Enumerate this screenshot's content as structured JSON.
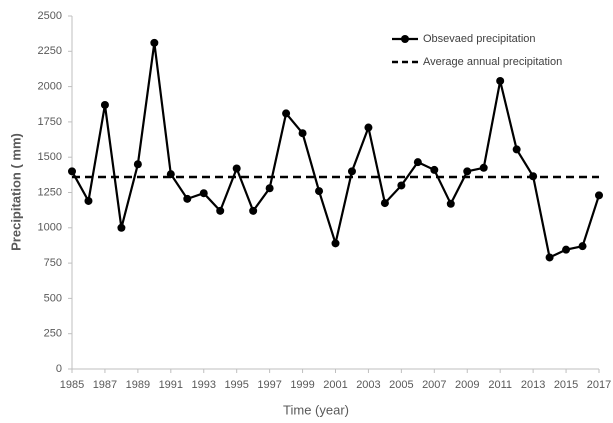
{
  "chart_data": {
    "type": "line",
    "x_label": "Time (year)",
    "y_label": "Precipitation ( mm)",
    "x": [
      1985,
      1986,
      1987,
      1988,
      1989,
      1990,
      1991,
      1992,
      1993,
      1994,
      1995,
      1996,
      1997,
      1998,
      1999,
      2000,
      2001,
      2002,
      2003,
      2004,
      2005,
      2006,
      2007,
      2008,
      2009,
      2010,
      2011,
      2012,
      2013,
      2014,
      2015,
      2016,
      2017
    ],
    "series": [
      {
        "name": "Obsevaed precipitation",
        "color": "#000000",
        "values": [
          1400,
          1190,
          1870,
          1000,
          1450,
          2310,
          1380,
          1205,
          1245,
          1120,
          1420,
          1120,
          1280,
          1810,
          1670,
          1260,
          890,
          1400,
          1710,
          1175,
          1300,
          1465,
          1410,
          1170,
          1400,
          1425,
          2040,
          1555,
          1365,
          790,
          845,
          870,
          1230
        ]
      }
    ],
    "reference_line": {
      "name": "Average annual precipitation",
      "value": 1360,
      "color": "#000000"
    },
    "xlim": [
      1985,
      2017
    ],
    "xticks": [
      1985,
      1987,
      1989,
      1991,
      1993,
      1995,
      1997,
      1999,
      2001,
      2003,
      2005,
      2007,
      2009,
      2011,
      2013,
      2015,
      2017
    ],
    "ylim": [
      0,
      2500
    ],
    "yticks": [
      0,
      250,
      500,
      750,
      1000,
      1250,
      1500,
      1750,
      2000,
      2250,
      2500
    ],
    "grid": false,
    "legend": "upper-right"
  }
}
